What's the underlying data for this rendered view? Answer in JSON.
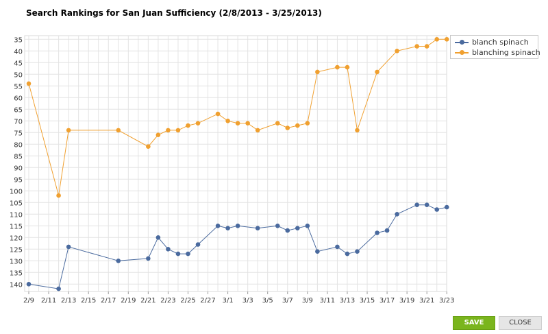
{
  "dialog": {
    "title": "Search Rankings for San Juan Sufficiency (2/8/2013 - 3/25/2013)",
    "save_label": "SAVE",
    "close_label": "CLOSE"
  },
  "colors": {
    "blanch_spinach": "#4a6a9e",
    "blanching_spinach": "#f0a030",
    "grid": "#e3e3e3",
    "save_button": "#7ab51d"
  },
  "chart_data": {
    "type": "line",
    "title": "Search Rankings for San Juan Sufficiency (2/8/2013 - 3/25/2013)",
    "xlabel": "",
    "ylabel": "",
    "x_tick_labels": [
      "2/9",
      "2/11",
      "2/13",
      "2/15",
      "2/17",
      "2/19",
      "2/21",
      "2/23",
      "2/25",
      "2/27",
      "3/1",
      "3/3",
      "3/5",
      "3/7",
      "3/9",
      "3/11",
      "3/13",
      "3/15",
      "3/17",
      "3/19",
      "3/21",
      "3/23"
    ],
    "x_range": [
      "2/9",
      "3/23"
    ],
    "y_reversed": true,
    "ylim": [
      35,
      142
    ],
    "y_ticks": [
      35,
      40,
      45,
      50,
      55,
      60,
      65,
      70,
      75,
      80,
      85,
      90,
      95,
      100,
      105,
      110,
      115,
      120,
      125,
      130,
      135,
      140
    ],
    "grid": true,
    "legend_position": "top-right",
    "series": [
      {
        "name": "blanch spinach",
        "color": "#4a6a9e",
        "points": [
          {
            "x": "2/9",
            "y": 140
          },
          {
            "x": "2/12",
            "y": 142
          },
          {
            "x": "2/13",
            "y": 124
          },
          {
            "x": "2/18",
            "y": 130
          },
          {
            "x": "2/21",
            "y": 129
          },
          {
            "x": "2/22",
            "y": 120
          },
          {
            "x": "2/23",
            "y": 125
          },
          {
            "x": "2/24",
            "y": 127
          },
          {
            "x": "2/25",
            "y": 127
          },
          {
            "x": "2/26",
            "y": 123
          },
          {
            "x": "2/28",
            "y": 115
          },
          {
            "x": "3/1",
            "y": 116
          },
          {
            "x": "3/2",
            "y": 115
          },
          {
            "x": "3/4",
            "y": 116
          },
          {
            "x": "3/6",
            "y": 115
          },
          {
            "x": "3/7",
            "y": 117
          },
          {
            "x": "3/8",
            "y": 116
          },
          {
            "x": "3/9",
            "y": 115
          },
          {
            "x": "3/10",
            "y": 126
          },
          {
            "x": "3/12",
            "y": 124
          },
          {
            "x": "3/13",
            "y": 127
          },
          {
            "x": "3/14",
            "y": 126
          },
          {
            "x": "3/16",
            "y": 118
          },
          {
            "x": "3/17",
            "y": 117
          },
          {
            "x": "3/18",
            "y": 110
          },
          {
            "x": "3/20",
            "y": 106
          },
          {
            "x": "3/21",
            "y": 106
          },
          {
            "x": "3/22",
            "y": 108
          },
          {
            "x": "3/23",
            "y": 107
          }
        ]
      },
      {
        "name": "blanching spinach",
        "color": "#f0a030",
        "points": [
          {
            "x": "2/9",
            "y": 54
          },
          {
            "x": "2/12",
            "y": 102
          },
          {
            "x": "2/13",
            "y": 74
          },
          {
            "x": "2/18",
            "y": 74
          },
          {
            "x": "2/21",
            "y": 81
          },
          {
            "x": "2/22",
            "y": 76
          },
          {
            "x": "2/23",
            "y": 74
          },
          {
            "x": "2/24",
            "y": 74
          },
          {
            "x": "2/25",
            "y": 72
          },
          {
            "x": "2/26",
            "y": 71
          },
          {
            "x": "2/28",
            "y": 67
          },
          {
            "x": "3/1",
            "y": 70
          },
          {
            "x": "3/2",
            "y": 71
          },
          {
            "x": "3/3",
            "y": 71
          },
          {
            "x": "3/4",
            "y": 74
          },
          {
            "x": "3/6",
            "y": 71
          },
          {
            "x": "3/7",
            "y": 73
          },
          {
            "x": "3/8",
            "y": 72
          },
          {
            "x": "3/9",
            "y": 71
          },
          {
            "x": "3/10",
            "y": 49
          },
          {
            "x": "3/12",
            "y": 47
          },
          {
            "x": "3/13",
            "y": 47
          },
          {
            "x": "3/14",
            "y": 74
          },
          {
            "x": "3/16",
            "y": 49
          },
          {
            "x": "3/18",
            "y": 40
          },
          {
            "x": "3/20",
            "y": 38
          },
          {
            "x": "3/21",
            "y": 38
          },
          {
            "x": "3/22",
            "y": 35
          },
          {
            "x": "3/23",
            "y": 35
          }
        ]
      }
    ]
  }
}
